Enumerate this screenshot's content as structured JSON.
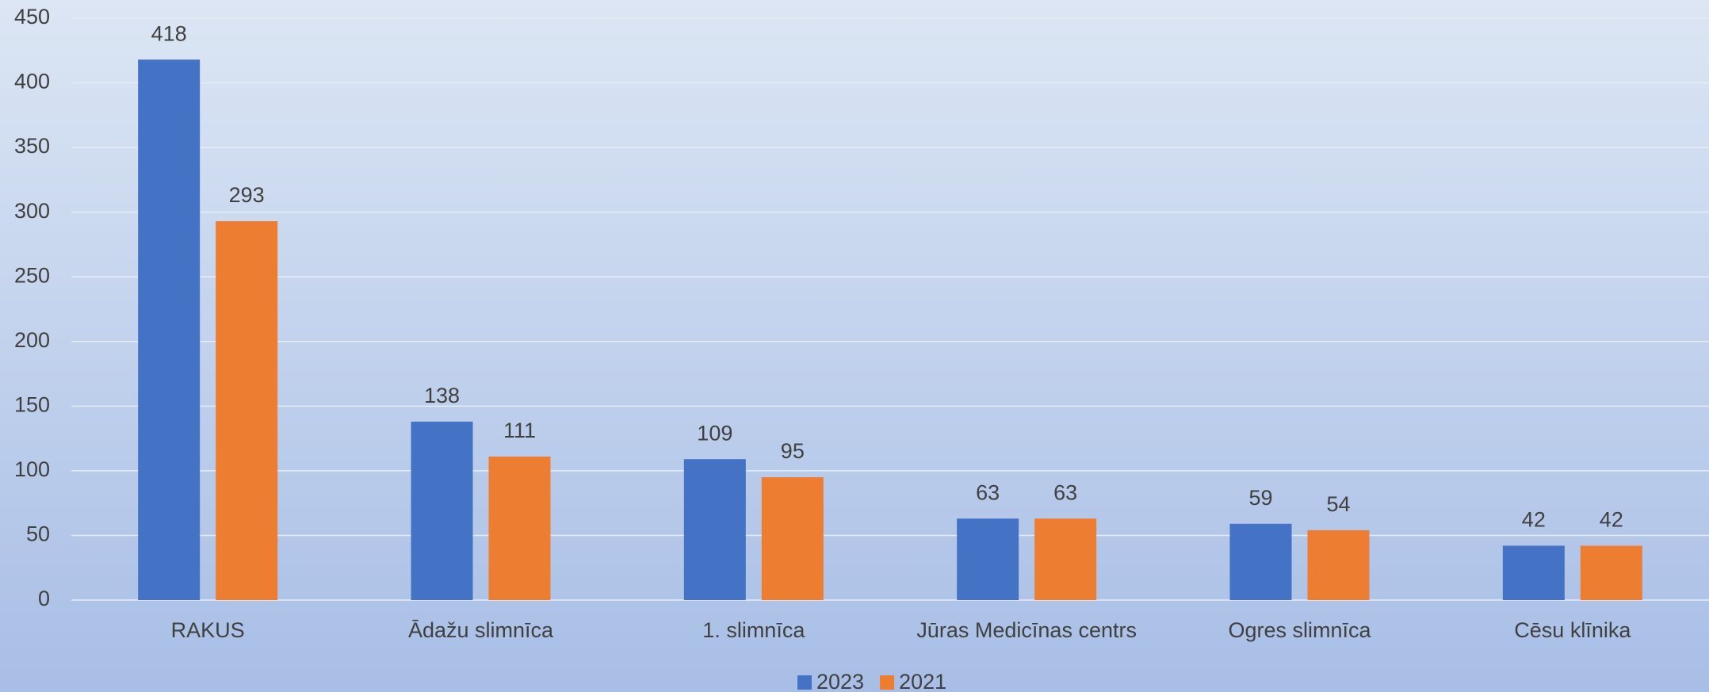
{
  "chart_data": {
    "type": "bar",
    "categories": [
      "RAKUS",
      "Ādažu slimnīca",
      "1. slimnīca",
      "Jūras Medicīnas centrs",
      "Ogres slimnīca",
      "Cēsu klīnika"
    ],
    "series": [
      {
        "name": "2023",
        "color": "#4472c4",
        "values": [
          418,
          138,
          109,
          63,
          59,
          42
        ]
      },
      {
        "name": "2021",
        "color": "#ed7d31",
        "values": [
          293,
          111,
          95,
          63,
          54,
          42
        ]
      }
    ],
    "ylim": [
      0,
      450
    ],
    "yticks": [
      0,
      50,
      100,
      150,
      200,
      250,
      300,
      350,
      400,
      450
    ],
    "grid": true,
    "legend": "bottom"
  }
}
